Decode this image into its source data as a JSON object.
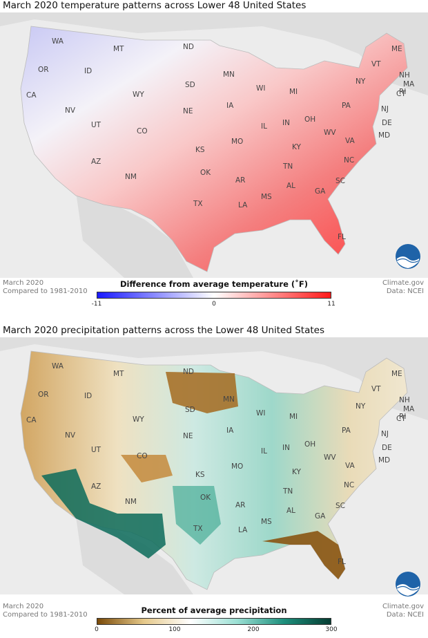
{
  "temperature_panel": {
    "title": "March 2020 temperature patterns across Lower 48 United States",
    "footer_left": [
      "March 2020",
      "Compared to 1981-2010"
    ],
    "footer_right": [
      "Climate.gov",
      "Data: NCEI"
    ],
    "legend_title": "Difference from average temperature (˚F)",
    "legend_ticks": [
      "-11",
      "0",
      "11"
    ],
    "legend_colors": [
      "#1a1aff",
      "#ffffff",
      "#ff1a1a"
    ],
    "logo": "noaa-logo"
  },
  "precipitation_panel": {
    "title": "March 2020 precipitation patterns across the Lower 48 United States",
    "footer_left": [
      "March 2020",
      "Compared to 1981-2010"
    ],
    "footer_right": [
      "Climate.gov",
      "Data: NCEI"
    ],
    "legend_title": "Percent of average precipitation",
    "legend_ticks": [
      "0",
      "100",
      "200",
      "300"
    ],
    "legend_colors": [
      "#7a4a08",
      "#e6c98a",
      "#ffffff",
      "#9be0d4",
      "#1d8f7c",
      "#063d33"
    ],
    "logo": "noaa-logo"
  },
  "states": [
    "WA",
    "OR",
    "CA",
    "ID",
    "NV",
    "MT",
    "WY",
    "UT",
    "AZ",
    "CO",
    "NM",
    "ND",
    "SD",
    "NE",
    "KS",
    "OK",
    "TX",
    "MN",
    "IA",
    "MO",
    "AR",
    "LA",
    "WI",
    "IL",
    "MI",
    "IN",
    "OH",
    "KY",
    "TN",
    "MS",
    "AL",
    "GA",
    "FL",
    "SC",
    "NC",
    "VA",
    "WV",
    "PA",
    "NY",
    "VT",
    "NH",
    "ME",
    "MA",
    "CT",
    "RI",
    "NJ",
    "DE",
    "MD"
  ],
  "colors": {
    "background": "#ececec",
    "land_outside": "#d6d6d6"
  }
}
